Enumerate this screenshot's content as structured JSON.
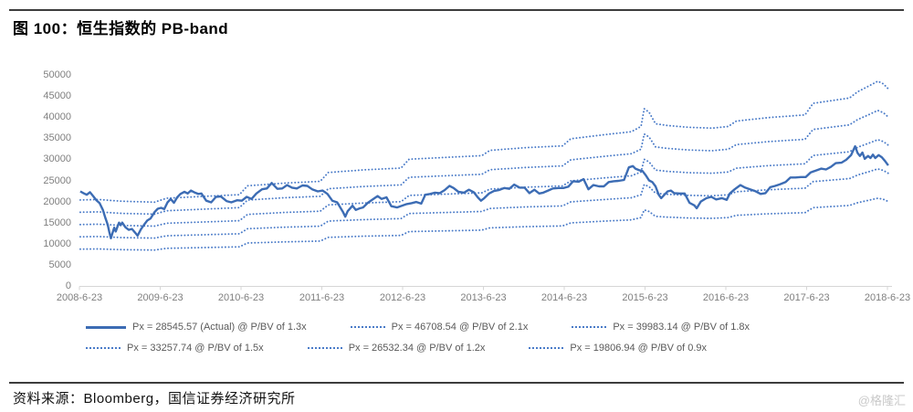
{
  "title": "图 100：恒生指数的 PB-band",
  "source": "资料来源：Bloomberg，国信证券经济研究所",
  "watermark": "@格隆汇",
  "colors": {
    "actual_line": "#3C6CB4",
    "band_line": "#4A7BC8",
    "axis_line": "#D6D6D6",
    "tick_label": "#7F7F7F",
    "legend_text": "#595959",
    "rule": "#3D3D3D",
    "watermark": "#C9C9C9"
  },
  "legend": {
    "rows": [
      [
        {
          "style": "solid",
          "label": "Px = 28545.57 (Actual) @ P/BV of 1.3x"
        },
        {
          "style": "dotted",
          "label": "Px = 46708.54 @ P/BV of 2.1x"
        },
        {
          "style": "dotted",
          "label": "Px = 39983.14 @ P/BV of 1.8x"
        }
      ],
      [
        {
          "style": "dotted",
          "label": "Px = 33257.74 @ P/BV of 1.5x"
        },
        {
          "style": "dotted",
          "label": "Px = 26532.34 @ P/BV of 1.2x"
        },
        {
          "style": "dotted",
          "label": "Px = 19806.94 @ P/BV of 0.9x"
        }
      ]
    ]
  },
  "chart_data": {
    "type": "line",
    "title": "恒生指数的 PB-band",
    "xlabel": "",
    "ylabel": "",
    "grid": false,
    "legend_position": "bottom",
    "ylim": [
      0,
      50000
    ],
    "yticks": [
      0,
      5000,
      10000,
      15000,
      20000,
      25000,
      30000,
      35000,
      40000,
      45000,
      50000
    ],
    "xtick_labels": [
      "2008-6-23",
      "2009-6-23",
      "2010-6-23",
      "2011-6-23",
      "2012-6-23",
      "2013-6-23",
      "2014-6-23",
      "2015-6-23",
      "2016-6-23",
      "2017-6-23",
      "2018-6-23"
    ],
    "x_start_year": 2008.47,
    "x_end_year": 2018.47,
    "band_ratios": [
      2.1,
      1.8,
      1.5,
      1.2,
      0.9
    ],
    "band_last_values": {
      "2.1": 46708.54,
      "1.8": 39983.14,
      "1.5": 33257.74,
      "1.2": 26532.34,
      "0.9": 19806.94
    },
    "actual_series": {
      "name": "Px (Actual) @ P/BV of 1.3x",
      "last_value": 28545.57,
      "points": [
        [
          2008.48,
          22400
        ],
        [
          2008.52,
          22000
        ],
        [
          2008.56,
          21600
        ],
        [
          2008.6,
          22200
        ],
        [
          2008.64,
          21300
        ],
        [
          2008.68,
          20300
        ],
        [
          2008.72,
          19600
        ],
        [
          2008.76,
          18000
        ],
        [
          2008.79,
          16200
        ],
        [
          2008.82,
          14500
        ],
        [
          2008.84,
          12800
        ],
        [
          2008.86,
          11300
        ],
        [
          2008.88,
          12600
        ],
        [
          2008.9,
          13800
        ],
        [
          2008.92,
          12900
        ],
        [
          2008.94,
          14000
        ],
        [
          2008.96,
          15000
        ],
        [
          2008.98,
          14400
        ],
        [
          2009.0,
          15000
        ],
        [
          2009.04,
          13900
        ],
        [
          2009.08,
          13300
        ],
        [
          2009.12,
          13500
        ],
        [
          2009.16,
          12600
        ],
        [
          2009.19,
          11900
        ],
        [
          2009.23,
          13400
        ],
        [
          2009.27,
          14500
        ],
        [
          2009.31,
          15500
        ],
        [
          2009.35,
          16000
        ],
        [
          2009.4,
          17500
        ],
        [
          2009.44,
          18300
        ],
        [
          2009.48,
          18500
        ],
        [
          2009.52,
          18200
        ],
        [
          2009.56,
          19800
        ],
        [
          2009.6,
          20600
        ],
        [
          2009.64,
          19700
        ],
        [
          2009.68,
          21000
        ],
        [
          2009.72,
          21800
        ],
        [
          2009.77,
          22300
        ],
        [
          2009.81,
          21900
        ],
        [
          2009.85,
          22600
        ],
        [
          2009.9,
          22100
        ],
        [
          2009.94,
          21800
        ],
        [
          2009.98,
          21900
        ],
        [
          2010.04,
          20200
        ],
        [
          2010.1,
          19800
        ],
        [
          2010.16,
          21100
        ],
        [
          2010.22,
          21200
        ],
        [
          2010.29,
          20100
        ],
        [
          2010.35,
          19800
        ],
        [
          2010.42,
          20300
        ],
        [
          2010.48,
          20200
        ],
        [
          2010.54,
          21100
        ],
        [
          2010.6,
          20600
        ],
        [
          2010.66,
          21900
        ],
        [
          2010.73,
          22900
        ],
        [
          2010.79,
          23100
        ],
        [
          2010.85,
          24400
        ],
        [
          2010.92,
          23000
        ],
        [
          2010.98,
          23100
        ],
        [
          2011.04,
          23900
        ],
        [
          2011.1,
          23300
        ],
        [
          2011.16,
          23100
        ],
        [
          2011.23,
          23800
        ],
        [
          2011.29,
          23700
        ],
        [
          2011.35,
          22900
        ],
        [
          2011.42,
          22400
        ],
        [
          2011.48,
          22600
        ],
        [
          2011.54,
          21800
        ],
        [
          2011.6,
          20200
        ],
        [
          2011.66,
          19800
        ],
        [
          2011.73,
          17600
        ],
        [
          2011.76,
          16400
        ],
        [
          2011.79,
          17700
        ],
        [
          2011.85,
          19000
        ],
        [
          2011.89,
          18000
        ],
        [
          2011.94,
          18400
        ],
        [
          2011.98,
          18600
        ],
        [
          2012.04,
          19700
        ],
        [
          2012.1,
          20500
        ],
        [
          2012.16,
          21300
        ],
        [
          2012.21,
          20600
        ],
        [
          2012.27,
          21000
        ],
        [
          2012.33,
          18900
        ],
        [
          2012.4,
          18600
        ],
        [
          2012.46,
          19000
        ],
        [
          2012.52,
          19400
        ],
        [
          2012.58,
          19600
        ],
        [
          2012.64,
          19900
        ],
        [
          2012.7,
          19500
        ],
        [
          2012.75,
          21600
        ],
        [
          2012.81,
          21800
        ],
        [
          2012.87,
          22100
        ],
        [
          2012.93,
          22000
        ],
        [
          2012.99,
          22700
        ],
        [
          2013.05,
          23700
        ],
        [
          2013.1,
          23200
        ],
        [
          2013.16,
          22300
        ],
        [
          2013.23,
          22100
        ],
        [
          2013.29,
          22800
        ],
        [
          2013.35,
          22200
        ],
        [
          2013.4,
          21000
        ],
        [
          2013.44,
          20200
        ],
        [
          2013.48,
          20800
        ],
        [
          2013.54,
          21900
        ],
        [
          2013.6,
          22500
        ],
        [
          2013.66,
          22700
        ],
        [
          2013.73,
          23200
        ],
        [
          2013.79,
          23000
        ],
        [
          2013.85,
          24000
        ],
        [
          2013.92,
          23300
        ],
        [
          2013.98,
          23300
        ],
        [
          2014.04,
          22000
        ],
        [
          2014.1,
          22800
        ],
        [
          2014.16,
          21900
        ],
        [
          2014.21,
          22100
        ],
        [
          2014.27,
          22600
        ],
        [
          2014.33,
          23100
        ],
        [
          2014.4,
          23200
        ],
        [
          2014.46,
          23200
        ],
        [
          2014.52,
          23500
        ],
        [
          2014.58,
          24800
        ],
        [
          2014.65,
          24700
        ],
        [
          2014.71,
          25300
        ],
        [
          2014.77,
          22900
        ],
        [
          2014.83,
          23900
        ],
        [
          2014.9,
          23600
        ],
        [
          2014.96,
          23600
        ],
        [
          2015.02,
          24600
        ],
        [
          2015.08,
          24800
        ],
        [
          2015.14,
          24900
        ],
        [
          2015.21,
          25100
        ],
        [
          2015.27,
          28100
        ],
        [
          2015.32,
          28400
        ],
        [
          2015.35,
          27800
        ],
        [
          2015.4,
          27400
        ],
        [
          2015.44,
          27200
        ],
        [
          2015.48,
          26200
        ],
        [
          2015.52,
          25000
        ],
        [
          2015.56,
          24600
        ],
        [
          2015.6,
          23600
        ],
        [
          2015.64,
          21600
        ],
        [
          2015.67,
          20800
        ],
        [
          2015.71,
          21600
        ],
        [
          2015.75,
          22400
        ],
        [
          2015.79,
          22600
        ],
        [
          2015.83,
          22000
        ],
        [
          2015.9,
          21900
        ],
        [
          2015.96,
          21900
        ],
        [
          2016.02,
          19700
        ],
        [
          2016.08,
          19100
        ],
        [
          2016.11,
          18400
        ],
        [
          2016.16,
          20000
        ],
        [
          2016.23,
          20800
        ],
        [
          2016.29,
          21100
        ],
        [
          2016.35,
          20500
        ],
        [
          2016.42,
          20800
        ],
        [
          2016.48,
          20400
        ],
        [
          2016.52,
          21900
        ],
        [
          2016.58,
          22900
        ],
        [
          2016.65,
          23900
        ],
        [
          2016.71,
          23300
        ],
        [
          2016.77,
          22900
        ],
        [
          2016.83,
          22500
        ],
        [
          2016.9,
          21800
        ],
        [
          2016.96,
          22000
        ],
        [
          2017.02,
          23400
        ],
        [
          2017.08,
          23700
        ],
        [
          2017.14,
          24100
        ],
        [
          2017.21,
          24600
        ],
        [
          2017.27,
          25700
        ],
        [
          2017.33,
          25700
        ],
        [
          2017.4,
          25800
        ],
        [
          2017.46,
          25800
        ],
        [
          2017.52,
          26900
        ],
        [
          2017.58,
          27300
        ],
        [
          2017.65,
          27800
        ],
        [
          2017.71,
          27600
        ],
        [
          2017.77,
          28200
        ],
        [
          2017.83,
          29100
        ],
        [
          2017.9,
          29200
        ],
        [
          2017.96,
          29900
        ],
        [
          2018.02,
          31000
        ],
        [
          2018.07,
          33100
        ],
        [
          2018.1,
          31500
        ],
        [
          2018.13,
          30800
        ],
        [
          2018.16,
          31600
        ],
        [
          2018.19,
          30100
        ],
        [
          2018.23,
          30800
        ],
        [
          2018.26,
          30300
        ],
        [
          2018.29,
          31100
        ],
        [
          2018.32,
          30300
        ],
        [
          2018.36,
          31000
        ],
        [
          2018.4,
          30500
        ],
        [
          2018.44,
          29600
        ],
        [
          2018.48,
          28546
        ]
      ]
    },
    "book_value_points": [
      [
        2008.48,
        9700
      ],
      [
        2008.7,
        9750
      ],
      [
        2009.0,
        9550
      ],
      [
        2009.4,
        9450
      ],
      [
        2009.55,
        9900
      ],
      [
        2010.0,
        10100
      ],
      [
        2010.45,
        10300
      ],
      [
        2010.55,
        11300
      ],
      [
        2011.0,
        11600
      ],
      [
        2011.45,
        11800
      ],
      [
        2011.55,
        12800
      ],
      [
        2012.0,
        13100
      ],
      [
        2012.45,
        13300
      ],
      [
        2012.55,
        14300
      ],
      [
        2013.0,
        14500
      ],
      [
        2013.45,
        14700
      ],
      [
        2013.55,
        15300
      ],
      [
        2014.0,
        15600
      ],
      [
        2014.45,
        15800
      ],
      [
        2014.55,
        16600
      ],
      [
        2015.0,
        17100
      ],
      [
        2015.3,
        17400
      ],
      [
        2015.42,
        18000
      ],
      [
        2015.46,
        20000
      ],
      [
        2015.52,
        19600
      ],
      [
        2015.6,
        18300
      ],
      [
        2015.75,
        18100
      ],
      [
        2016.0,
        17900
      ],
      [
        2016.3,
        17800
      ],
      [
        2016.5,
        18000
      ],
      [
        2016.6,
        18600
      ],
      [
        2017.0,
        19000
      ],
      [
        2017.45,
        19300
      ],
      [
        2017.55,
        20600
      ],
      [
        2018.0,
        21200
      ],
      [
        2018.1,
        21900
      ],
      [
        2018.25,
        22600
      ],
      [
        2018.35,
        23100
      ],
      [
        2018.42,
        22800
      ],
      [
        2018.48,
        22240
      ]
    ]
  }
}
